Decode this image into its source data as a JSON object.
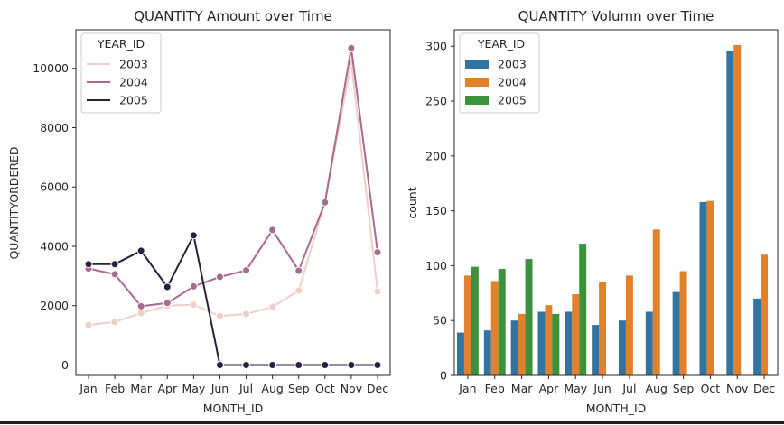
{
  "chart_data": [
    {
      "type": "line",
      "title": "QUANTITY Amount over Time",
      "xlabel": "MONTH_ID",
      "ylabel": "QUANTITYORDERED",
      "categories": [
        "Jan",
        "Feb",
        "Mar",
        "Apr",
        "May",
        "Jun",
        "Jul",
        "Aug",
        "Sep",
        "Oct",
        "Nov",
        "Dec"
      ],
      "ylim": [
        -350,
        11300
      ],
      "yticks": [
        0,
        2000,
        4000,
        6000,
        8000,
        10000
      ],
      "legend": {
        "title": "YEAR_ID",
        "placement": "upper-left"
      },
      "series": [
        {
          "name": "2003",
          "color": "#efcfc7",
          "values": [
            1350,
            1450,
            1750,
            2000,
            2030,
            1650,
            1720,
            1960,
            2510,
            5500,
            10200,
            2480
          ]
        },
        {
          "name": "2004",
          "color": "#a86a8f",
          "values": [
            3250,
            3060,
            1980,
            2090,
            2650,
            2970,
            3190,
            4550,
            3180,
            5480,
            10680,
            3800
          ]
        },
        {
          "name": "2005",
          "color": "#2b1e3e",
          "values": [
            3400,
            3400,
            3850,
            2630,
            4370,
            0,
            0,
            0,
            0,
            0,
            0,
            0
          ]
        }
      ]
    },
    {
      "type": "bar",
      "title": "QUANTITY Volumn over Time",
      "xlabel": "MONTH_ID",
      "ylabel": "count",
      "categories": [
        "Jan",
        "Feb",
        "Mar",
        "Apr",
        "May",
        "Jun",
        "Jul",
        "Aug",
        "Sep",
        "Oct",
        "Nov",
        "Dec"
      ],
      "ylim": [
        0,
        315
      ],
      "yticks": [
        0,
        50,
        100,
        150,
        200,
        250,
        300
      ],
      "legend": {
        "title": "YEAR_ID",
        "placement": "upper-left"
      },
      "series": [
        {
          "name": "2003",
          "color": "#3274a1",
          "values": [
            39,
            41,
            50,
            58,
            58,
            46,
            50,
            58,
            76,
            158,
            296,
            70
          ]
        },
        {
          "name": "2004",
          "color": "#e1812c",
          "values": [
            91,
            86,
            56,
            64,
            74,
            85,
            91,
            133,
            95,
            159,
            301,
            110
          ]
        },
        {
          "name": "2005",
          "color": "#3a923a",
          "values": [
            99,
            97,
            106,
            56,
            120,
            null,
            null,
            null,
            null,
            null,
            null,
            null
          ]
        }
      ]
    }
  ]
}
